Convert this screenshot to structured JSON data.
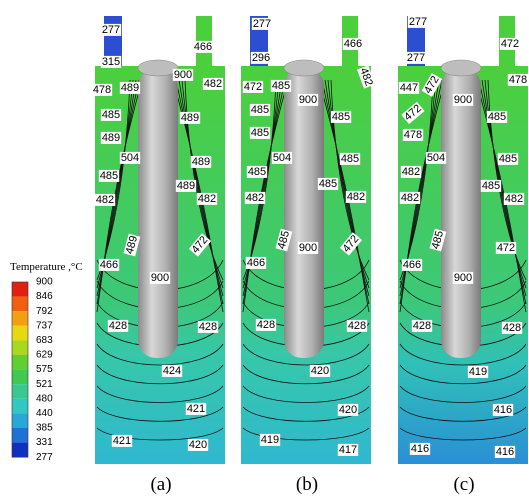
{
  "legend": {
    "title": "Temperature ,°C",
    "ticks": [
      "900",
      "846",
      "792",
      "737",
      "683",
      "629",
      "575",
      "521",
      "480",
      "440",
      "385",
      "331",
      "277"
    ]
  },
  "panels": [
    {
      "caption": "(a)",
      "labels": [
        "277",
        "466",
        "315",
        "478",
        "489",
        "900",
        "482",
        "485",
        "489",
        "489",
        "504",
        "489",
        "485",
        "489",
        "482",
        "482",
        "489",
        "472",
        "466",
        "900",
        "428",
        "428",
        "424",
        "421",
        "421",
        "420"
      ]
    },
    {
      "caption": "(b)",
      "labels": [
        "277",
        "466",
        "296",
        "472",
        "485",
        "900",
        "482",
        "485",
        "485",
        "485",
        "504",
        "485",
        "485",
        "485",
        "482",
        "482",
        "485",
        "472",
        "466",
        "900",
        "428",
        "428",
        "420",
        "420",
        "419",
        "417"
      ]
    },
    {
      "caption": "(c)",
      "labels": [
        "277",
        "472",
        "277",
        "447",
        "472",
        "900",
        "478",
        "472",
        "485",
        "478",
        "504",
        "485",
        "482",
        "485",
        "482",
        "482",
        "485",
        "472",
        "466",
        "900",
        "428",
        "428",
        "419",
        "416",
        "416",
        "416"
      ]
    }
  ]
}
